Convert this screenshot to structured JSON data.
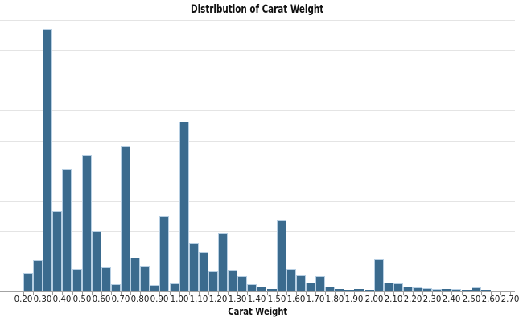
{
  "chart_data": {
    "type": "bar",
    "subtype": "histogram",
    "title": "Distribution of Carat Weight",
    "xlabel": "Carat Weight",
    "ylabel": "",
    "bin_start": 0.2,
    "bin_width": 0.05,
    "values": [
      610,
      1030,
      8700,
      2680,
      4050,
      740,
      4500,
      1990,
      790,
      240,
      4830,
      1120,
      830,
      220,
      2510,
      280,
      5630,
      1600,
      1320,
      680,
      1930,
      690,
      520,
      230,
      160,
      70,
      2370,
      740,
      540,
      290,
      500,
      160,
      70,
      50,
      70,
      50,
      1070,
      300,
      260,
      160,
      130,
      110,
      80,
      70,
      80,
      50,
      130,
      50,
      30,
      30
    ],
    "x_tick_labels": [
      "0.20",
      "0.30",
      "0.40",
      "0.50",
      "0.60",
      "0.70",
      "0.80",
      "0.90",
      "1.00",
      "1.10",
      "1.20",
      "1.30",
      "1.40",
      "1.50",
      "1.60",
      "1.70",
      "1.80",
      "1.90",
      "2.00",
      "2.10",
      "2.20",
      "2.30",
      "2.40",
      "2.50",
      "2.60",
      "2.70"
    ],
    "minor_tick_step": 0.05,
    "xlim": [
      0.08,
      2.72
    ],
    "ylim": [
      0,
      9200
    ],
    "grid": "horizontal",
    "gridline_interval": 1000,
    "legend": null
  },
  "colors": {
    "bar_fill": "#3b6b8e",
    "bar_edge": "#b7cfe3",
    "gridline": "#e4e4e4",
    "axis_line": "#a3a3a3",
    "tick_mark": "#9a9a9a",
    "text": "#1a1a1a",
    "background": "#ffffff"
  }
}
